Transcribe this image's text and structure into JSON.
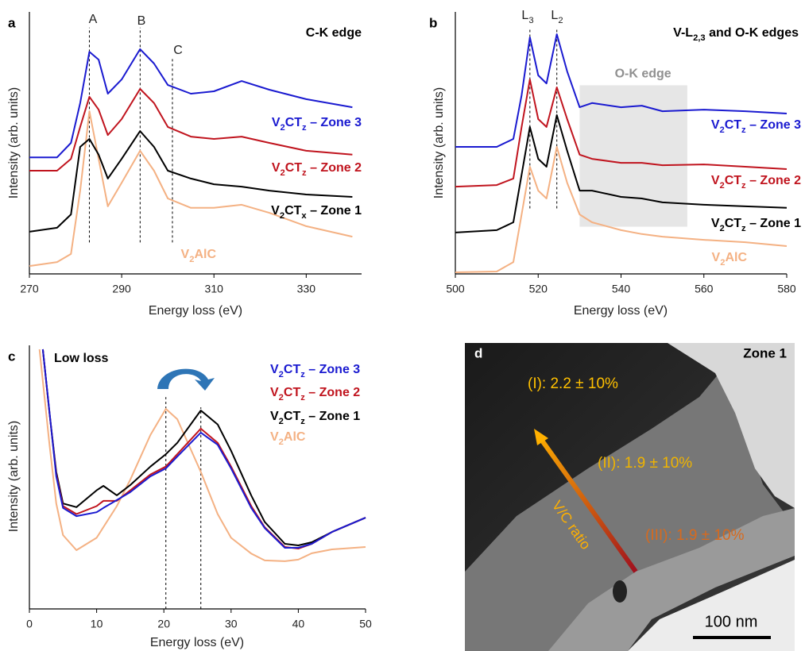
{
  "chart_data": [
    {
      "type": "line",
      "panel_label": "a",
      "title": "C-K edge",
      "xlabel": "Energy loss (eV)",
      "ylabel": "Intensity (arb. units)",
      "xlim": [
        270,
        342
      ],
      "xticks": [
        270,
        290,
        310,
        330
      ],
      "ylim": [
        0,
        100
      ],
      "vlines": [
        {
          "x": 283,
          "label": "A",
          "y": [
            12,
            94
          ]
        },
        {
          "x": 294,
          "label": "B",
          "y": [
            12,
            94
          ]
        },
        {
          "x": 301,
          "label": "C",
          "y": [
            12,
            82
          ]
        }
      ],
      "series": [
        {
          "name": "V2CTz – Zone 3",
          "color": "#1a1ad0",
          "x": [
            270,
            276,
            279,
            281,
            283,
            285,
            287,
            290,
            294,
            297,
            300,
            305,
            310,
            316,
            322,
            330,
            340
          ],
          "values": [
            44.5,
            44.5,
            50,
            65.2,
            84.8,
            81.8,
            68.8,
            74.2,
            85.8,
            80.3,
            72.1,
            68.8,
            69.7,
            73.6,
            70.3,
            66.7,
            63.6
          ]
        },
        {
          "name": "V2CTz – Zone 2",
          "color": "#c0141e",
          "x": [
            270,
            276,
            279,
            281,
            283,
            285,
            287,
            290,
            294,
            297,
            300,
            305,
            310,
            316,
            322,
            330,
            340
          ],
          "values": [
            39.4,
            39.4,
            43.9,
            56.1,
            67.6,
            62.7,
            53,
            59.1,
            70.6,
            65.2,
            56.1,
            52.4,
            51.5,
            52.4,
            50,
            47,
            45.5
          ]
        },
        {
          "name": "V2CTx – Zone 1",
          "color": "#000000",
          "x": [
            270,
            276,
            279,
            281,
            283,
            285,
            287,
            290,
            294,
            297,
            300,
            305,
            310,
            316,
            322,
            330,
            340
          ],
          "values": [
            16.1,
            17.6,
            22.7,
            48.5,
            51.5,
            45.5,
            36.4,
            43.9,
            54.5,
            48.5,
            39.4,
            36.4,
            34.2,
            33.3,
            31.8,
            30.3,
            29.4
          ]
        },
        {
          "name": "V2AlC",
          "color": "#f4b183",
          "x": [
            270,
            276,
            279,
            281,
            283,
            285,
            287,
            290,
            294,
            297,
            300,
            305,
            310,
            316,
            322,
            330,
            340
          ],
          "values": [
            3,
            4.5,
            7.6,
            31.8,
            62.1,
            43.9,
            25.8,
            34.8,
            47,
            39.4,
            28.8,
            25.2,
            25.2,
            26.4,
            23.3,
            18.2,
            14.2
          ]
        }
      ]
    },
    {
      "type": "line",
      "panel_label": "b",
      "title": "V-L2,3 and O-K edges",
      "xlabel": "Energy loss (eV)",
      "ylabel": "Intensity (arb. units)",
      "xlim": [
        500,
        580
      ],
      "xticks": [
        500,
        520,
        540,
        560,
        580
      ],
      "ylim": [
        0,
        100
      ],
      "shade": {
        "xlim": [
          530,
          556
        ],
        "ylim": [
          18,
          72
        ],
        "label": "O-K edge"
      },
      "vlines": [
        {
          "x": 518,
          "label": "L3",
          "y": [
            25,
            94
          ]
        },
        {
          "x": 524.5,
          "label": "L2",
          "y": [
            25,
            94
          ]
        }
      ],
      "series": [
        {
          "name": "V2CTz – Zone 3",
          "color": "#1a1ad0",
          "x": [
            500,
            510,
            514,
            516,
            518,
            520,
            522,
            524.5,
            527,
            530,
            533,
            540,
            545,
            550,
            560,
            570,
            580
          ],
          "values": [
            48.5,
            48.5,
            51.5,
            68.2,
            90.3,
            75.8,
            72.7,
            91.5,
            77.3,
            63.6,
            65.2,
            63.6,
            64.2,
            62.1,
            62.7,
            62.1,
            61.2
          ]
        },
        {
          "name": "V2CTz – Zone 2",
          "color": "#c0141e",
          "x": [
            500,
            510,
            514,
            516,
            518,
            520,
            522,
            524.5,
            527,
            530,
            533,
            540,
            545,
            550,
            560,
            570,
            580
          ],
          "values": [
            33.3,
            33.9,
            36.4,
            56.1,
            74.2,
            59.1,
            56.1,
            71.2,
            59.1,
            45.5,
            43.9,
            42.4,
            42.4,
            41.5,
            41.8,
            40.9,
            40
          ]
        },
        {
          "name": "V2CTz – Zone 1",
          "color": "#000000",
          "x": [
            500,
            510,
            514,
            516,
            518,
            520,
            522,
            524.5,
            527,
            530,
            533,
            540,
            545,
            550,
            560,
            570,
            580
          ],
          "values": [
            15.8,
            16.7,
            19.7,
            37.9,
            56.1,
            43.9,
            40.9,
            60.6,
            47,
            31.8,
            31.8,
            29.4,
            28.8,
            27.3,
            26.4,
            25.8,
            25.2
          ]
        },
        {
          "name": "V2AlC",
          "color": "#f4b183",
          "x": [
            500,
            510,
            514,
            516,
            518,
            520,
            522,
            524.5,
            527,
            530,
            533,
            540,
            545,
            550,
            560,
            570,
            580
          ],
          "values": [
            0.6,
            0.9,
            4.5,
            22.7,
            40.9,
            31.8,
            28.8,
            48.5,
            34.8,
            22.7,
            19.7,
            16.7,
            15.2,
            14.2,
            13,
            12.1,
            10.6
          ]
        }
      ]
    },
    {
      "type": "line",
      "panel_label": "c",
      "title": "Low loss",
      "xlabel": "Energy loss (eV)",
      "ylabel": "Intensity (arb. units)",
      "xlim": [
        0,
        50
      ],
      "xticks": [
        0,
        10,
        20,
        30,
        40,
        50
      ],
      "ylim": [
        0,
        100
      ],
      "vlines": [
        {
          "x": 20.3,
          "y": [
            0,
            80.4
          ]
        },
        {
          "x": 25.5,
          "y": [
            0,
            76.5
          ]
        }
      ],
      "series": [
        {
          "name": "V2CTz – Zone 3",
          "color": "#1a1ad0",
          "x": [
            2,
            3,
            4,
            5,
            7,
            10,
            11,
            13,
            15,
            18,
            20.3,
            22,
            25.5,
            28,
            30,
            33,
            35,
            38,
            40,
            42,
            45,
            50
          ],
          "values": [
            98.5,
            74.4,
            50.3,
            38.3,
            35.2,
            36.7,
            38.3,
            41.3,
            44.3,
            50.3,
            53.3,
            57.8,
            66.9,
            62.3,
            53.3,
            38.3,
            30.7,
            23.2,
            23.2,
            24.7,
            29.2,
            34.6
          ]
        },
        {
          "name": "V2CTz – Zone 2",
          "color": "#c0141e",
          "x": [
            2,
            3,
            4,
            5,
            7,
            10,
            11,
            13,
            15,
            18,
            20.3,
            22,
            25.5,
            28,
            30,
            33,
            35,
            38,
            40,
            42,
            45,
            50
          ],
          "values": [
            98.5,
            74,
            51,
            39,
            36,
            39,
            41,
            41,
            45,
            51,
            54,
            58.7,
            68.4,
            63,
            54,
            39,
            31,
            23.5,
            22.9,
            24.7,
            29.2,
            34.6
          ]
        },
        {
          "name": "V2CTz – Zone 1",
          "color": "#000000",
          "x": [
            2,
            3,
            4,
            5,
            7,
            10,
            11,
            13,
            15,
            18,
            20.3,
            22,
            25.5,
            28,
            30,
            33,
            35,
            38,
            40,
            42,
            45,
            50
          ],
          "values": [
            98.5,
            74,
            52,
            40,
            38.6,
            45,
            46.7,
            43.1,
            47,
            54,
            58.7,
            63,
            75.3,
            70,
            60,
            43,
            33,
            24.7,
            24.1,
            25.3,
            29.2,
            34.6
          ]
        },
        {
          "name": "V2AlC",
          "color": "#f4b183",
          "x": [
            1.5,
            3,
            4,
            5,
            7,
            10,
            13,
            15,
            18,
            20.3,
            22,
            25.5,
            28,
            30,
            33,
            35,
            38,
            40,
            42,
            45,
            50
          ],
          "values": [
            98.5,
            62,
            40,
            28,
            22.3,
            27,
            39,
            49,
            66,
            75.9,
            72,
            52,
            36,
            27,
            21,
            18.4,
            18.1,
            18.7,
            21.1,
            22.6,
            23.5
          ]
        }
      ]
    }
  ],
  "micrograph": {
    "panel_label": "d",
    "zone": "Zone 1",
    "region_1": "(I): 2.2 ± 10%",
    "region_2": "(II): 1.9 ± 10%",
    "region_3": "(III): 1.9 ± 10%",
    "arrow_label": "V/C ratio",
    "scale_bar": "100 nm"
  }
}
